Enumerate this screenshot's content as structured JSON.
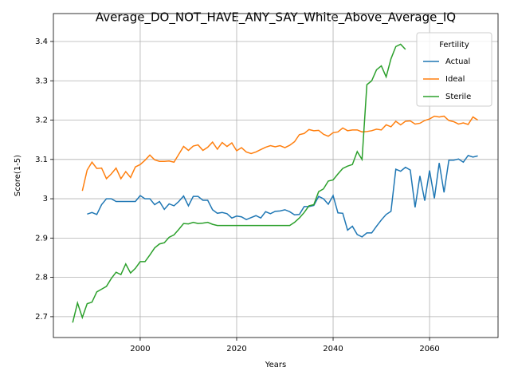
{
  "chart_data": {
    "type": "line",
    "title": "Average_DO_NOT_HAVE_ANY_SAY_White_Above_Average_IQ",
    "x_label": "Years",
    "y_label": "Score(1-5)",
    "x": [
      1986,
      1987,
      1988,
      1989,
      1990,
      1991,
      1992,
      1993,
      1994,
      1995,
      1996,
      1997,
      1998,
      1999,
      2000,
      2001,
      2002,
      2003,
      2004,
      2005,
      2006,
      2007,
      2008,
      2009,
      2010,
      2011,
      2012,
      2013,
      2014,
      2015,
      2016,
      2017,
      2018,
      2019,
      2020,
      2021,
      2022,
      2023,
      2024,
      2025,
      2026,
      2027,
      2028,
      2029,
      2030,
      2031,
      2032,
      2033,
      2034,
      2035,
      2036,
      2037,
      2038,
      2039,
      2040,
      2041,
      2042,
      2043,
      2044,
      2045,
      2046,
      2047,
      2048,
      2049,
      2050,
      2051,
      2052,
      2053,
      2054,
      2055,
      2056,
      2057,
      2058,
      2059,
      2060,
      2061,
      2062,
      2063,
      2064,
      2065,
      2066,
      2067,
      2068,
      2069,
      2070
    ],
    "series": [
      {
        "name": "Actual",
        "color": "#1f77b4",
        "values": [
          null,
          null,
          null,
          2.961,
          2.965,
          2.96,
          2.985,
          3.0,
          3.0,
          2.993,
          2.993,
          2.993,
          2.993,
          2.993,
          3.008,
          3.0,
          3.0,
          2.985,
          2.993,
          2.973,
          2.987,
          2.982,
          2.993,
          3.007,
          2.982,
          3.006,
          3.006,
          2.996,
          2.996,
          2.972,
          2.963,
          2.965,
          2.962,
          2.951,
          2.956,
          2.954,
          2.947,
          2.952,
          2.957,
          2.951,
          2.967,
          2.962,
          2.968,
          2.969,
          2.972,
          2.967,
          2.959,
          2.96,
          2.98,
          2.98,
          2.983,
          3.006,
          3.0,
          2.986,
          3.008,
          2.964,
          2.963,
          2.92,
          2.93,
          2.909,
          2.903,
          2.913,
          2.913,
          2.93,
          2.946,
          2.96,
          2.968,
          3.075,
          3.07,
          3.08,
          3.073,
          2.978,
          3.058,
          2.995,
          3.072,
          3.001,
          3.091,
          3.016,
          3.098,
          3.098,
          3.101,
          3.093,
          3.11,
          3.106,
          3.109
        ]
      },
      {
        "name": "Ideal",
        "color": "#ff7f0e",
        "values": [
          null,
          null,
          3.02,
          3.073,
          3.093,
          3.077,
          3.078,
          3.051,
          3.063,
          3.078,
          3.051,
          3.069,
          3.054,
          3.081,
          3.087,
          3.098,
          3.111,
          3.099,
          3.095,
          3.095,
          3.096,
          3.093,
          3.113,
          3.133,
          3.123,
          3.134,
          3.137,
          3.123,
          3.131,
          3.144,
          3.126,
          3.143,
          3.133,
          3.142,
          3.122,
          3.13,
          3.119,
          3.115,
          3.119,
          3.125,
          3.131,
          3.135,
          3.132,
          3.135,
          3.13,
          3.136,
          3.145,
          3.163,
          3.166,
          3.176,
          3.173,
          3.174,
          3.164,
          3.159,
          3.168,
          3.17,
          3.18,
          3.173,
          3.175,
          3.175,
          3.17,
          3.171,
          3.173,
          3.177,
          3.175,
          3.188,
          3.183,
          3.197,
          3.188,
          3.197,
          3.198,
          3.19,
          3.192,
          3.199,
          3.203,
          3.21,
          3.208,
          3.21,
          3.199,
          3.196,
          3.19,
          3.193,
          3.189,
          3.208,
          3.2
        ]
      },
      {
        "name": "Sterile",
        "color": "#2ca02c",
        "values": [
          2.685,
          2.735,
          2.698,
          2.733,
          2.737,
          2.763,
          2.77,
          2.777,
          2.797,
          2.813,
          2.807,
          2.834,
          2.811,
          2.823,
          2.84,
          2.84,
          2.857,
          2.875,
          2.885,
          2.888,
          2.902,
          2.908,
          2.922,
          2.937,
          2.936,
          2.94,
          2.937,
          2.938,
          2.94,
          2.935,
          2.932,
          2.932,
          2.932,
          2.932,
          2.932,
          2.932,
          2.932,
          2.932,
          2.932,
          2.932,
          2.932,
          2.932,
          2.932,
          2.932,
          2.932,
          2.932,
          2.94,
          2.951,
          2.965,
          2.982,
          2.985,
          3.018,
          3.025,
          3.045,
          3.048,
          3.063,
          3.077,
          3.083,
          3.087,
          3.12,
          3.1,
          3.29,
          3.3,
          3.328,
          3.338,
          3.31,
          3.356,
          3.387,
          3.393,
          3.38,
          null,
          null,
          null,
          null,
          null,
          null,
          null,
          null,
          null,
          null,
          null,
          null,
          null,
          null,
          null
        ]
      }
    ],
    "xlim": [
      1982,
      2074.2
    ],
    "ylim": [
      2.647,
      3.471
    ],
    "xticks": [
      2000,
      2020,
      2040,
      2060
    ],
    "yticks": [
      2.7,
      2.8,
      2.9,
      3.0,
      3.1,
      3.2,
      3.3,
      3.4
    ],
    "grid": true,
    "legend_title": "Fertility",
    "legend_loc": "upper right"
  }
}
